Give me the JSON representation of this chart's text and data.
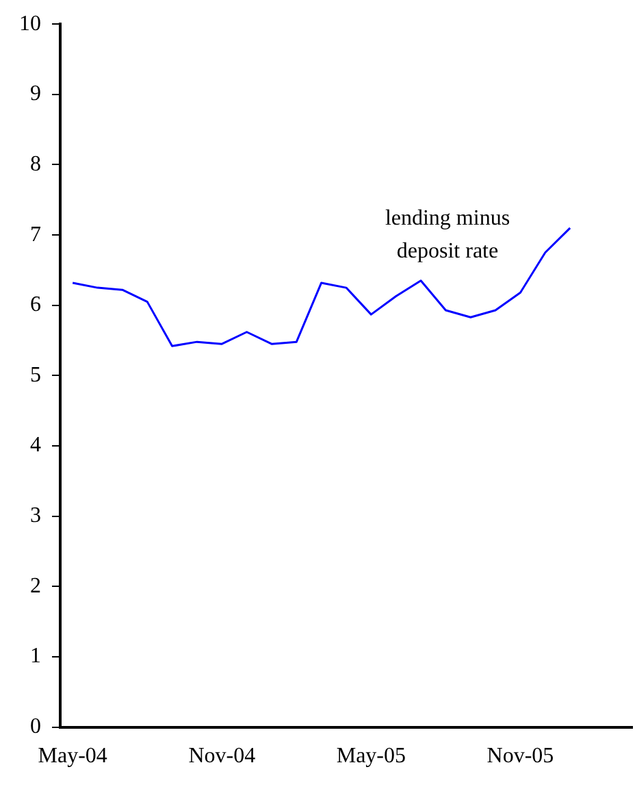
{
  "chart_data": {
    "type": "line",
    "categories": [
      "May-04",
      null,
      null,
      null,
      null,
      null,
      "Nov-04",
      null,
      null,
      null,
      null,
      null,
      "May-05",
      null,
      null,
      null,
      null,
      null,
      "Nov-05",
      null,
      null,
      null,
      null
    ],
    "series": [
      {
        "color": "#0000ff",
        "values": [
          6.32,
          6.25,
          6.22,
          6.05,
          5.42,
          5.48,
          5.45,
          5.62,
          5.45,
          5.48,
          6.32,
          6.25,
          5.87,
          6.13,
          6.35,
          5.93,
          5.83,
          5.93,
          6.18,
          6.75,
          7.1,
          null,
          null
        ]
      }
    ],
    "ylim": [
      0,
      10
    ],
    "yticks": [
      0,
      1,
      2,
      3,
      4,
      5,
      6,
      7,
      8,
      9,
      10
    ],
    "annotations": [
      "lending minus deposit rate"
    ],
    "grid": false,
    "legend": false,
    "marker": "none",
    "line_style": "solid"
  }
}
